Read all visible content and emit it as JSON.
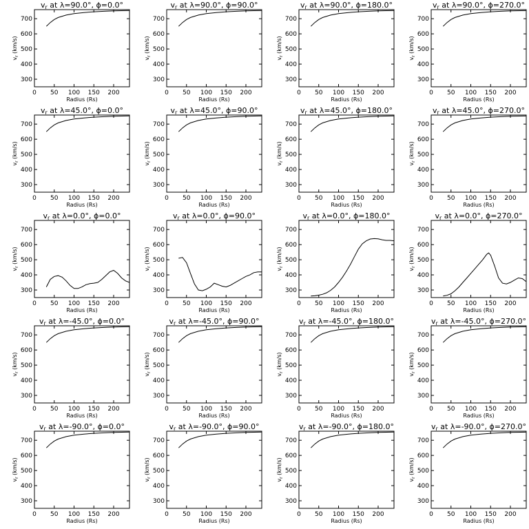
{
  "chart_data": [
    {
      "type": "line",
      "title": "v_r at λ=90.0°, ϕ=0.0°",
      "xlabel": "Radius (Rs)",
      "ylabel": "v_r (km/s)",
      "xlim": [
        0,
        240
      ],
      "ylim": [
        250,
        760
      ],
      "xticks": [
        0,
        50,
        100,
        150,
        200
      ],
      "yticks": [
        300,
        400,
        500,
        600,
        700
      ],
      "grid": false,
      "series": [
        {
          "x": [
            30,
            40,
            50,
            60,
            80,
            100,
            125,
            150,
            175,
            200,
            240
          ],
          "y": [
            650,
            675,
            695,
            708,
            724,
            734,
            741,
            746,
            749,
            752,
            754
          ]
        }
      ]
    },
    {
      "type": "line",
      "title": "v_r at λ=90.0°, ϕ=90.0°",
      "xlabel": "Radius (Rs)",
      "ylabel": "v_r (km/s)",
      "xlim": [
        0,
        240
      ],
      "ylim": [
        250,
        760
      ],
      "xticks": [
        0,
        50,
        100,
        150,
        200
      ],
      "yticks": [
        300,
        400,
        500,
        600,
        700
      ],
      "grid": false,
      "series": [
        {
          "x": [
            30,
            40,
            50,
            60,
            80,
            100,
            125,
            150,
            175,
            200,
            240
          ],
          "y": [
            650,
            675,
            695,
            708,
            724,
            734,
            741,
            746,
            749,
            752,
            754
          ]
        }
      ]
    },
    {
      "type": "line",
      "title": "v_r at λ=90.0°, ϕ=180.0°",
      "xlabel": "Radius (Rs)",
      "ylabel": "v_r (km/s)",
      "xlim": [
        0,
        240
      ],
      "ylim": [
        250,
        760
      ],
      "xticks": [
        0,
        50,
        100,
        150,
        200
      ],
      "yticks": [
        300,
        400,
        500,
        600,
        700
      ],
      "grid": false,
      "series": [
        {
          "x": [
            30,
            40,
            50,
            60,
            80,
            100,
            125,
            150,
            175,
            200,
            240
          ],
          "y": [
            650,
            675,
            695,
            708,
            724,
            734,
            741,
            746,
            749,
            752,
            754
          ]
        }
      ]
    },
    {
      "type": "line",
      "title": "v_r at λ=90.0°, ϕ=270.0°",
      "xlabel": "Radius (Rs)",
      "ylabel": "v_r (km/s)",
      "xlim": [
        0,
        240
      ],
      "ylim": [
        250,
        760
      ],
      "xticks": [
        0,
        50,
        100,
        150,
        200
      ],
      "yticks": [
        300,
        400,
        500,
        600,
        700
      ],
      "grid": false,
      "series": [
        {
          "x": [
            30,
            40,
            50,
            60,
            80,
            100,
            125,
            150,
            175,
            200,
            240
          ],
          "y": [
            650,
            675,
            695,
            708,
            724,
            734,
            741,
            746,
            749,
            752,
            754
          ]
        }
      ]
    },
    {
      "type": "line",
      "title": "v_r at λ=45.0°, ϕ=0.0°",
      "xlabel": "Radius (Rs)",
      "ylabel": "v_r (km/s)",
      "xlim": [
        0,
        240
      ],
      "ylim": [
        250,
        760
      ],
      "xticks": [
        0,
        50,
        100,
        150,
        200
      ],
      "yticks": [
        300,
        400,
        500,
        600,
        700
      ],
      "grid": false,
      "series": [
        {
          "x": [
            30,
            40,
            50,
            60,
            80,
            100,
            125,
            150,
            175,
            200,
            240
          ],
          "y": [
            650,
            675,
            695,
            708,
            724,
            734,
            741,
            746,
            749,
            752,
            754
          ]
        }
      ]
    },
    {
      "type": "line",
      "title": "v_r at λ=45.0°, ϕ=90.0°",
      "xlabel": "Radius (Rs)",
      "ylabel": "v_r (km/s)",
      "xlim": [
        0,
        240
      ],
      "ylim": [
        250,
        760
      ],
      "xticks": [
        0,
        50,
        100,
        150,
        200
      ],
      "yticks": [
        300,
        400,
        500,
        600,
        700
      ],
      "grid": false,
      "series": [
        {
          "x": [
            30,
            40,
            50,
            60,
            80,
            100,
            125,
            150,
            175,
            200,
            240
          ],
          "y": [
            650,
            675,
            695,
            708,
            724,
            734,
            741,
            746,
            749,
            752,
            754
          ]
        }
      ]
    },
    {
      "type": "line",
      "title": "v_r at λ=45.0°, ϕ=180.0°",
      "xlabel": "Radius (Rs)",
      "ylabel": "v_r (km/s)",
      "xlim": [
        0,
        240
      ],
      "ylim": [
        250,
        760
      ],
      "xticks": [
        0,
        50,
        100,
        150,
        200
      ],
      "yticks": [
        300,
        400,
        500,
        600,
        700
      ],
      "grid": false,
      "series": [
        {
          "x": [
            30,
            40,
            50,
            60,
            80,
            100,
            125,
            150,
            175,
            200,
            240
          ],
          "y": [
            650,
            675,
            695,
            708,
            724,
            734,
            741,
            746,
            749,
            752,
            754
          ]
        }
      ]
    },
    {
      "type": "line",
      "title": "v_r at λ=45.0°, ϕ=270.0°",
      "xlabel": "Radius (Rs)",
      "ylabel": "v_r (km/s)",
      "xlim": [
        0,
        240
      ],
      "ylim": [
        250,
        760
      ],
      "xticks": [
        0,
        50,
        100,
        150,
        200
      ],
      "yticks": [
        300,
        400,
        500,
        600,
        700
      ],
      "grid": false,
      "series": [
        {
          "x": [
            30,
            40,
            50,
            60,
            80,
            100,
            125,
            150,
            175,
            200,
            240
          ],
          "y": [
            650,
            675,
            695,
            708,
            724,
            734,
            741,
            746,
            749,
            752,
            754
          ]
        }
      ]
    },
    {
      "type": "line",
      "title": "v_r at λ=0.0°, ϕ=0.0°",
      "xlabel": "Radius (Rs)",
      "ylabel": "v_r (km/s)",
      "xlim": [
        0,
        240
      ],
      "ylim": [
        250,
        760
      ],
      "xticks": [
        0,
        50,
        100,
        150,
        200
      ],
      "yticks": [
        300,
        400,
        500,
        600,
        700
      ],
      "grid": false,
      "series": [
        {
          "x": [
            30,
            40,
            50,
            60,
            70,
            80,
            90,
            100,
            110,
            120,
            130,
            140,
            150,
            160,
            170,
            180,
            190,
            200,
            210,
            220,
            230,
            240
          ],
          "y": [
            320,
            370,
            390,
            395,
            385,
            360,
            330,
            310,
            310,
            320,
            335,
            342,
            345,
            350,
            370,
            395,
            420,
            430,
            410,
            380,
            360,
            350
          ]
        }
      ]
    },
    {
      "type": "line",
      "title": "v_r at λ=0.0°, ϕ=90.0°",
      "xlabel": "Radius (Rs)",
      "ylabel": "v_r (km/s)",
      "xlim": [
        0,
        240
      ],
      "ylim": [
        250,
        760
      ],
      "xticks": [
        0,
        50,
        100,
        150,
        200
      ],
      "yticks": [
        300,
        400,
        500,
        600,
        700
      ],
      "grid": false,
      "series": [
        {
          "x": [
            30,
            40,
            50,
            60,
            70,
            80,
            90,
            100,
            110,
            120,
            130,
            140,
            150,
            160,
            170,
            180,
            190,
            200,
            210,
            220,
            230,
            240
          ],
          "y": [
            510,
            515,
            480,
            410,
            340,
            300,
            295,
            305,
            320,
            345,
            335,
            325,
            320,
            330,
            345,
            360,
            375,
            390,
            400,
            415,
            420,
            420
          ]
        }
      ]
    },
    {
      "type": "line",
      "title": "v_r at λ=0.0°, ϕ=180.0°",
      "xlabel": "Radius (Rs)",
      "ylabel": "v_r (km/s)",
      "xlim": [
        0,
        240
      ],
      "ylim": [
        250,
        760
      ],
      "xticks": [
        0,
        50,
        100,
        150,
        200
      ],
      "yticks": [
        300,
        400,
        500,
        600,
        700
      ],
      "grid": false,
      "series": [
        {
          "x": [
            30,
            40,
            50,
            60,
            70,
            80,
            90,
            100,
            110,
            120,
            130,
            140,
            150,
            160,
            170,
            180,
            190,
            200,
            210,
            220,
            230,
            240
          ],
          "y": [
            260,
            262,
            266,
            272,
            282,
            298,
            320,
            350,
            385,
            425,
            470,
            520,
            570,
            605,
            625,
            637,
            640,
            638,
            632,
            628,
            628,
            625
          ]
        }
      ]
    },
    {
      "type": "line",
      "title": "v_r at λ=0.0°, ϕ=270.0°",
      "xlabel": "Radius (Rs)",
      "ylabel": "v_r (km/s)",
      "xlim": [
        0,
        240
      ],
      "ylim": [
        250,
        760
      ],
      "xticks": [
        0,
        50,
        100,
        150,
        200
      ],
      "yticks": [
        300,
        400,
        500,
        600,
        700
      ],
      "grid": false,
      "series": [
        {
          "x": [
            30,
            40,
            50,
            60,
            70,
            80,
            90,
            100,
            110,
            120,
            130,
            140,
            145,
            150,
            160,
            170,
            180,
            190,
            200,
            210,
            220,
            230,
            240
          ],
          "y": [
            260,
            265,
            275,
            295,
            320,
            350,
            380,
            410,
            440,
            470,
            500,
            535,
            545,
            530,
            460,
            380,
            345,
            340,
            350,
            365,
            380,
            375,
            355
          ]
        }
      ]
    },
    {
      "type": "line",
      "title": "v_r at λ=-45.0°, ϕ=0.0°",
      "xlabel": "Radius (Rs)",
      "ylabel": "v_r (km/s)",
      "xlim": [
        0,
        240
      ],
      "ylim": [
        250,
        760
      ],
      "xticks": [
        0,
        50,
        100,
        150,
        200
      ],
      "yticks": [
        300,
        400,
        500,
        600,
        700
      ],
      "grid": false,
      "series": [
        {
          "x": [
            30,
            40,
            50,
            60,
            80,
            100,
            125,
            150,
            175,
            200,
            240
          ],
          "y": [
            650,
            675,
            695,
            708,
            724,
            734,
            741,
            746,
            749,
            752,
            754
          ]
        }
      ]
    },
    {
      "type": "line",
      "title": "v_r at λ=-45.0°, ϕ=90.0°",
      "xlabel": "Radius (Rs)",
      "ylabel": "v_r (km/s)",
      "xlim": [
        0,
        240
      ],
      "ylim": [
        250,
        760
      ],
      "xticks": [
        0,
        50,
        100,
        150,
        200
      ],
      "yticks": [
        300,
        400,
        500,
        600,
        700
      ],
      "grid": false,
      "series": [
        {
          "x": [
            30,
            40,
            50,
            60,
            80,
            100,
            125,
            150,
            175,
            200,
            240
          ],
          "y": [
            650,
            675,
            695,
            708,
            724,
            734,
            741,
            746,
            749,
            752,
            754
          ]
        }
      ]
    },
    {
      "type": "line",
      "title": "v_r at λ=-45.0°, ϕ=180.0°",
      "xlabel": "Radius (Rs)",
      "ylabel": "v_r (km/s)",
      "xlim": [
        0,
        240
      ],
      "ylim": [
        250,
        760
      ],
      "xticks": [
        0,
        50,
        100,
        150,
        200
      ],
      "yticks": [
        300,
        400,
        500,
        600,
        700
      ],
      "grid": false,
      "series": [
        {
          "x": [
            30,
            40,
            50,
            60,
            80,
            100,
            125,
            150,
            175,
            200,
            240
          ],
          "y": [
            650,
            675,
            695,
            708,
            724,
            734,
            741,
            746,
            749,
            752,
            754
          ]
        }
      ]
    },
    {
      "type": "line",
      "title": "v_r at λ=-45.0°, ϕ=270.0°",
      "xlabel": "Radius (Rs)",
      "ylabel": "v_r (km/s)",
      "xlim": [
        0,
        240
      ],
      "ylim": [
        250,
        760
      ],
      "xticks": [
        0,
        50,
        100,
        150,
        200
      ],
      "yticks": [
        300,
        400,
        500,
        600,
        700
      ],
      "grid": false,
      "series": [
        {
          "x": [
            30,
            40,
            50,
            60,
            80,
            100,
            125,
            150,
            175,
            200,
            240
          ],
          "y": [
            650,
            675,
            695,
            708,
            724,
            734,
            741,
            746,
            749,
            752,
            754
          ]
        }
      ]
    },
    {
      "type": "line",
      "title": "v_r at λ=-90.0°, ϕ=0.0°",
      "xlabel": "Radius (Rs)",
      "ylabel": "v_r (km/s)",
      "xlim": [
        0,
        240
      ],
      "ylim": [
        250,
        760
      ],
      "xticks": [
        0,
        50,
        100,
        150,
        200
      ],
      "yticks": [
        300,
        400,
        500,
        600,
        700
      ],
      "grid": false,
      "series": [
        {
          "x": [
            30,
            40,
            50,
            60,
            80,
            100,
            125,
            150,
            175,
            200,
            240
          ],
          "y": [
            650,
            675,
            695,
            708,
            724,
            734,
            741,
            746,
            749,
            752,
            754
          ]
        }
      ]
    },
    {
      "type": "line",
      "title": "v_r at λ=-90.0°, ϕ=90.0°",
      "xlabel": "Radius (Rs)",
      "ylabel": "v_r (km/s)",
      "xlim": [
        0,
        240
      ],
      "ylim": [
        250,
        760
      ],
      "xticks": [
        0,
        50,
        100,
        150,
        200
      ],
      "yticks": [
        300,
        400,
        500,
        600,
        700
      ],
      "grid": false,
      "series": [
        {
          "x": [
            30,
            40,
            50,
            60,
            80,
            100,
            125,
            150,
            175,
            200,
            240
          ],
          "y": [
            650,
            675,
            695,
            708,
            724,
            734,
            741,
            746,
            749,
            752,
            754
          ]
        }
      ]
    },
    {
      "type": "line",
      "title": "v_r at λ=-90.0°, ϕ=180.0°",
      "xlabel": "Radius (Rs)",
      "ylabel": "v_r (km/s)",
      "xlim": [
        0,
        240
      ],
      "ylim": [
        250,
        760
      ],
      "xticks": [
        0,
        50,
        100,
        150,
        200
      ],
      "yticks": [
        300,
        400,
        500,
        600,
        700
      ],
      "grid": false,
      "series": [
        {
          "x": [
            30,
            40,
            50,
            60,
            80,
            100,
            125,
            150,
            175,
            200,
            240
          ],
          "y": [
            650,
            675,
            695,
            708,
            724,
            734,
            741,
            746,
            749,
            752,
            754
          ]
        }
      ]
    },
    {
      "type": "line",
      "title": "v_r at λ=-90.0°, ϕ=270.0°",
      "xlabel": "Radius (Rs)",
      "ylabel": "v_r (km/s)",
      "xlim": [
        0,
        240
      ],
      "ylim": [
        250,
        760
      ],
      "xticks": [
        0,
        50,
        100,
        150,
        200
      ],
      "yticks": [
        300,
        400,
        500,
        600,
        700
      ],
      "grid": false,
      "series": [
        {
          "x": [
            30,
            40,
            50,
            60,
            80,
            100,
            125,
            150,
            175,
            200,
            240
          ],
          "y": [
            650,
            675,
            695,
            708,
            724,
            734,
            741,
            746,
            749,
            752,
            754
          ]
        }
      ]
    }
  ]
}
